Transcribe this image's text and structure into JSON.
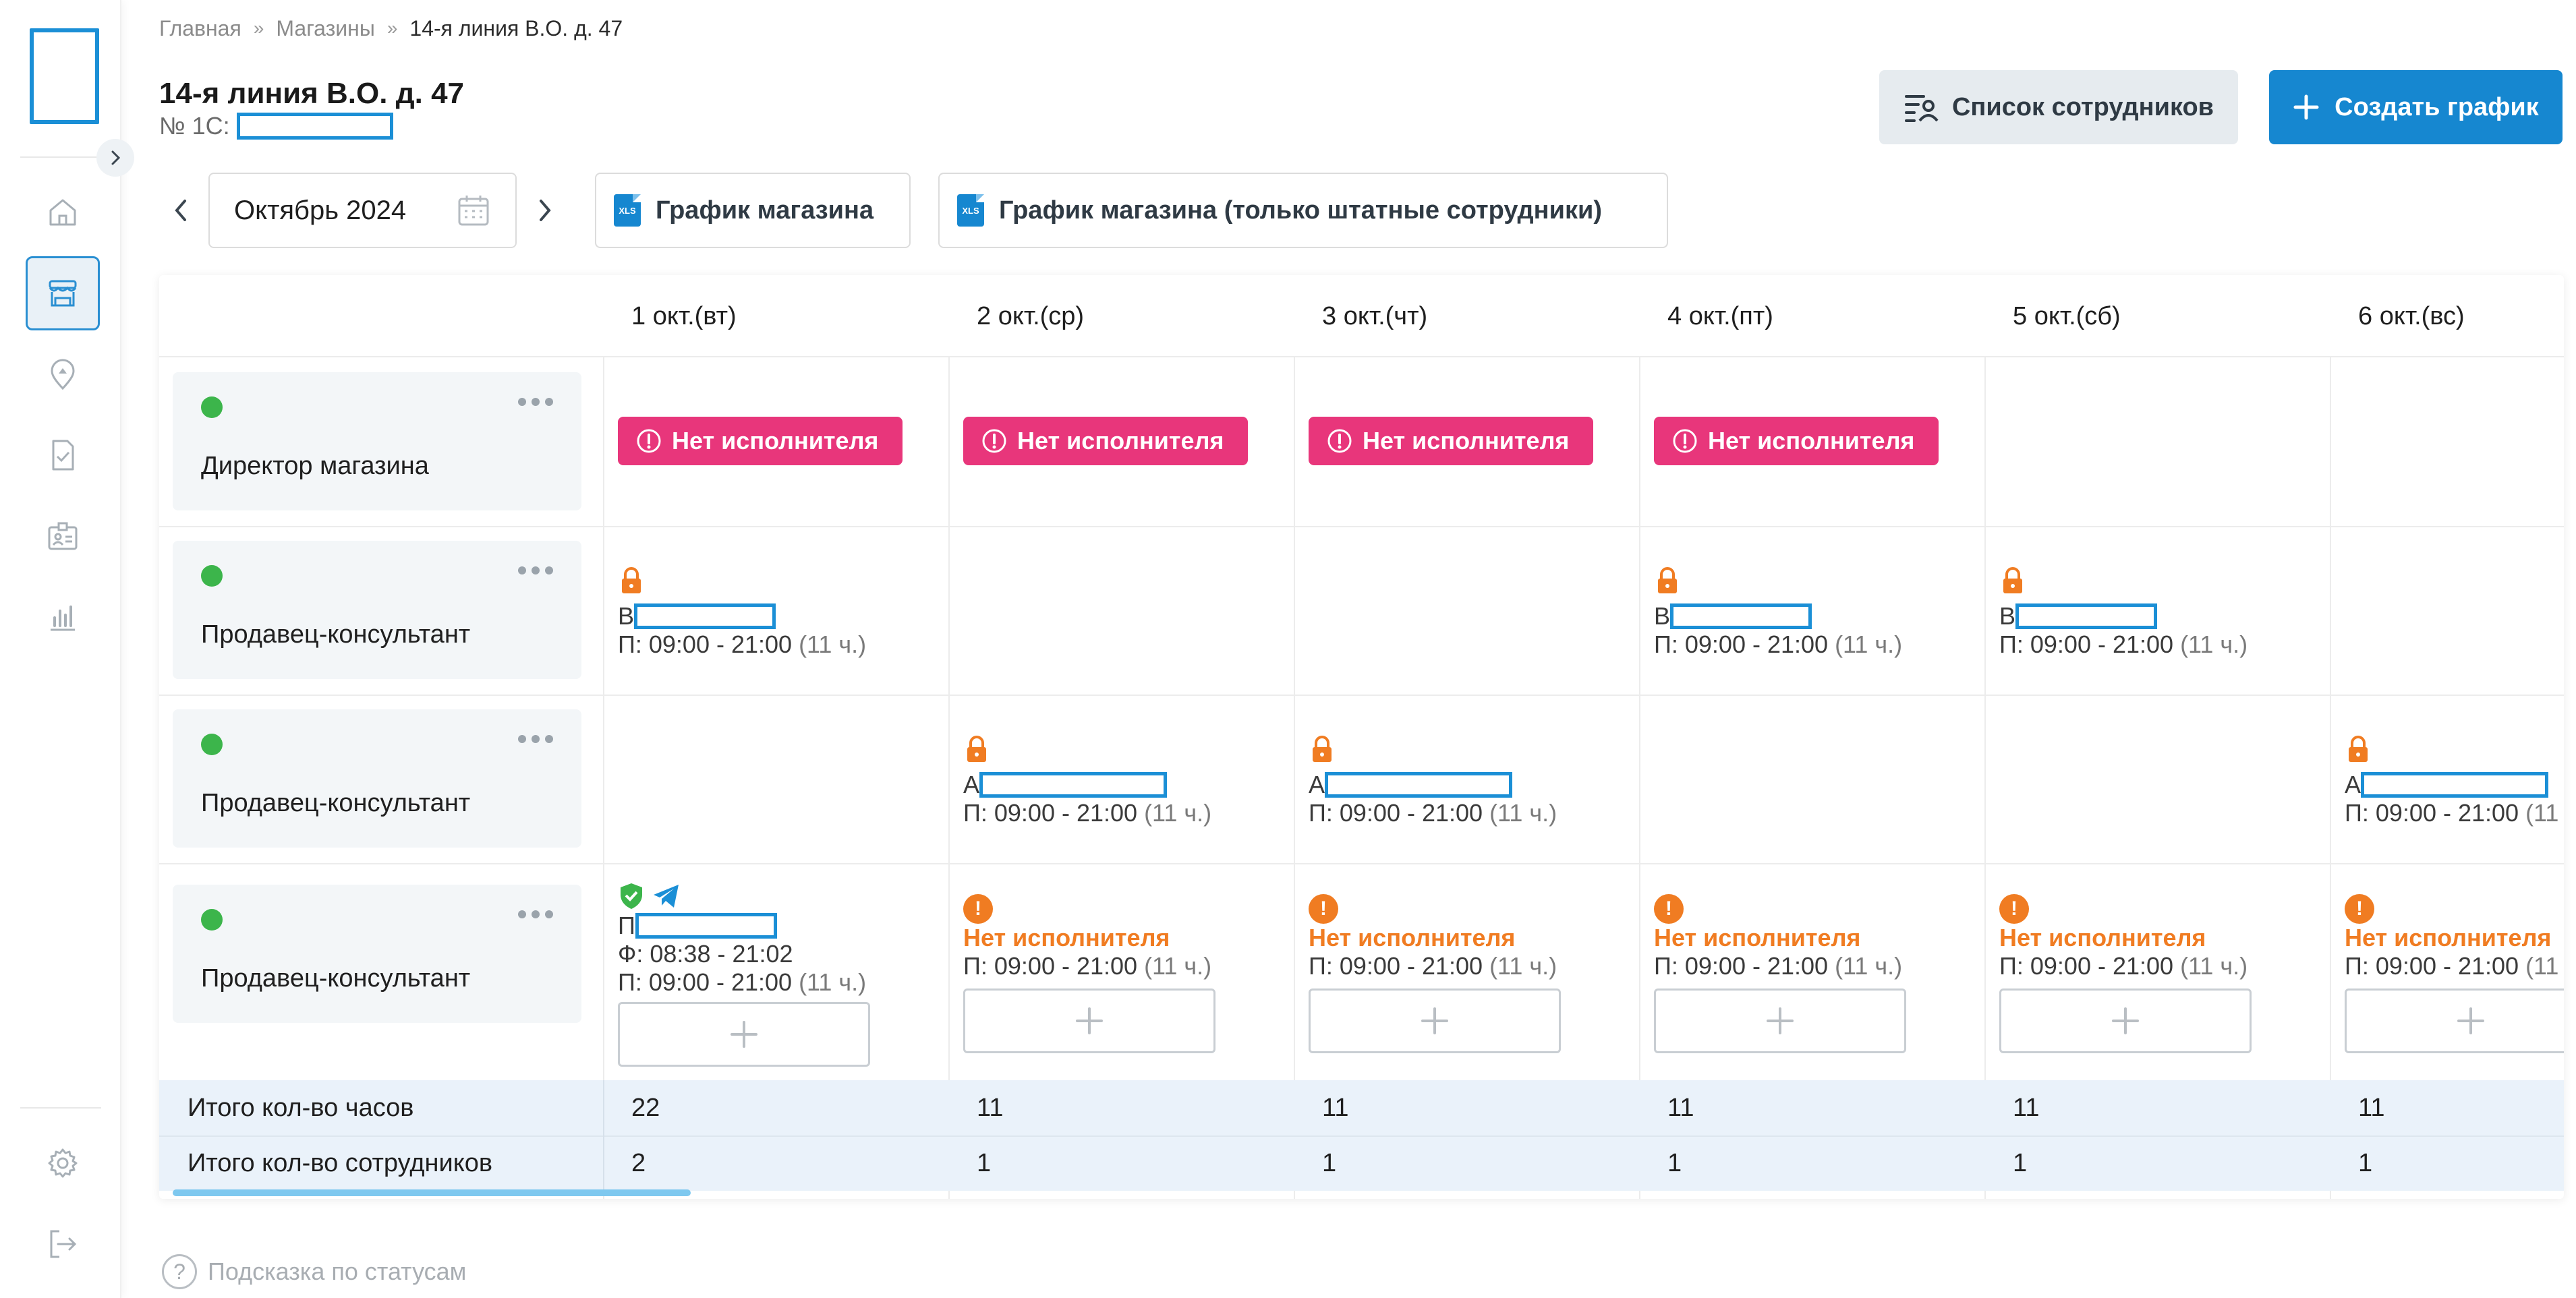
{
  "breadcrumb": [
    "Главная",
    "Магазины",
    "14-я линия В.О. д. 47"
  ],
  "store": {
    "title": "14-я линия В.О. д. 47",
    "code_label": "№ 1С:"
  },
  "buttons": {
    "staff_list": "Список сотрудников",
    "create_schedule": "Создать график"
  },
  "toolbar": {
    "month": "Октябрь 2024",
    "export_store": "График магазина",
    "export_store_staff": "График магазина (только штатные сотрудники)",
    "xls": "XLS"
  },
  "days": [
    "1 окт.(вт)",
    "2 окт.(ср)",
    "3 окт.(чт)",
    "4 окт.(пт)",
    "5 окт.(сб)",
    "6 окт.(вс)"
  ],
  "roles": [
    {
      "label": "Директор магазина"
    },
    {
      "label": "Продавец-консультант"
    },
    {
      "label": "Продавец-консультант"
    },
    {
      "label": "Продавец-консультант"
    }
  ],
  "no_executor": "Нет исполнителя",
  "shift": {
    "initial_b": "В",
    "initial_a": "А",
    "initial_p": "П",
    "plan": "П: 09:00 - 21:00",
    "plan_hours": "(11 ч.)",
    "fact": "Ф: 08:38 - 21:02"
  },
  "totals": {
    "hours_label": "Итого кол-во часов",
    "staff_label": "Итого кол-во сотрудников",
    "hours": [
      "22",
      "11",
      "11",
      "11",
      "11",
      "11"
    ],
    "staff": [
      "2",
      "1",
      "1",
      "1",
      "1",
      "1"
    ]
  },
  "hint": "Подсказка по статусам",
  "colors": {
    "accent": "#1687d0",
    "danger": "#e8367b",
    "warning": "#f07c22",
    "ok": "#3cb54b"
  },
  "icons": [
    "home-icon",
    "store-icon",
    "map-pin-icon",
    "checklist-icon",
    "id-card-icon",
    "chart-icon",
    "gear-icon",
    "logout-icon",
    "lock-icon",
    "shield-check-icon",
    "telegram-icon",
    "plus-icon",
    "calendar-icon"
  ]
}
